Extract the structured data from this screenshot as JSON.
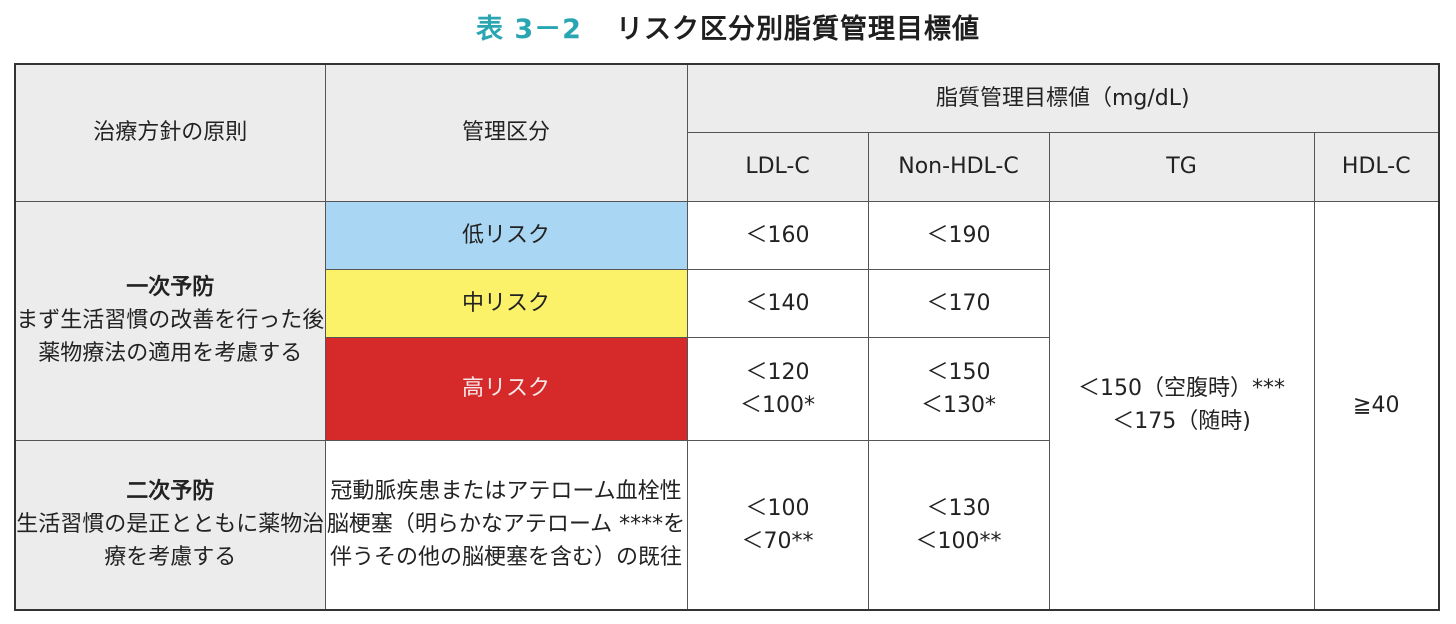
{
  "title": {
    "number": "表 3－2",
    "text": "リスク区分別脂質管理目標値"
  },
  "headers": {
    "principle": "治療方針の原則",
    "category": "管理区分",
    "target_group": "脂質管理目標値（mg/dL)",
    "ldl": "LDL-C",
    "nonhdl": "Non-HDL-C",
    "tg": "TG",
    "hdl": "HDL-C"
  },
  "principles": {
    "primary": {
      "title": "一次予防",
      "desc": "まず生活習慣の改善を行った後薬物療法の適用を考慮する"
    },
    "secondary": {
      "title": "二次予防",
      "desc": "生活習慣の是正とともに薬物治療を考慮する"
    }
  },
  "categories": {
    "low": "低リスク",
    "mid": "中リスク",
    "high": "高リスク",
    "secondary": "冠動脈疾患またはアテローム血栓性脳梗塞（明らかなアテローム ****を伴うその他の脳梗塞を含む）の既往"
  },
  "ldl": {
    "low": "＜160",
    "mid": "＜140",
    "high_1": "＜120",
    "high_2": "＜100*",
    "sec_1": "＜100",
    "sec_2": "＜70**"
  },
  "nonhdl": {
    "low": "＜190",
    "mid": "＜170",
    "high_1": "＜150",
    "high_2": "＜130*",
    "sec_1": "＜130",
    "sec_2": "＜100**"
  },
  "tg": {
    "line1": "＜150（空腹時）***",
    "line2": "＜175（随時)"
  },
  "hdl": "≧40",
  "colors": {
    "low": "#a9d7f3",
    "mid": "#fbf26a",
    "high": "#d6292a",
    "header_bg": "#ececec",
    "title_accent": "#2aa6b3"
  }
}
